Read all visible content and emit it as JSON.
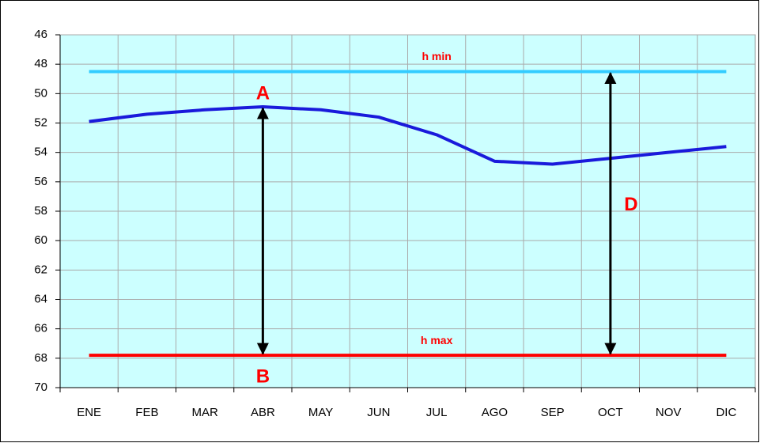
{
  "chart_data": {
    "type": "line",
    "categories": [
      "ENE",
      "FEB",
      "MAR",
      "ABR",
      "MAY",
      "JUN",
      "JUL",
      "AGO",
      "SEP",
      "OCT",
      "NOV",
      "DIC"
    ],
    "series": [
      {
        "color": "#1a1adb",
        "values": [
          51.9,
          51.4,
          51.1,
          50.9,
          51.1,
          51.6,
          52.8,
          54.6,
          54.8,
          54.4,
          54.0,
          53.6
        ]
      },
      {
        "name": "h min",
        "color": "#33ccff",
        "values": [
          48.5,
          48.5,
          48.5,
          48.5,
          48.5,
          48.5,
          48.5,
          48.5,
          48.5,
          48.5,
          48.5,
          48.5
        ]
      },
      {
        "name": "h max",
        "color": "#ff0000",
        "values": [
          67.8,
          67.8,
          67.8,
          67.8,
          67.8,
          67.8,
          67.8,
          67.8,
          67.8,
          67.8,
          67.8,
          67.8
        ]
      }
    ],
    "annotations": [
      "A",
      "B",
      "D"
    ],
    "ylim": [
      46,
      70
    ],
    "y_inverted": true,
    "yticks": [
      46,
      48,
      50,
      52,
      54,
      56,
      58,
      60,
      62,
      64,
      66,
      68,
      70
    ],
    "grid": true,
    "background": "#ccffff"
  }
}
